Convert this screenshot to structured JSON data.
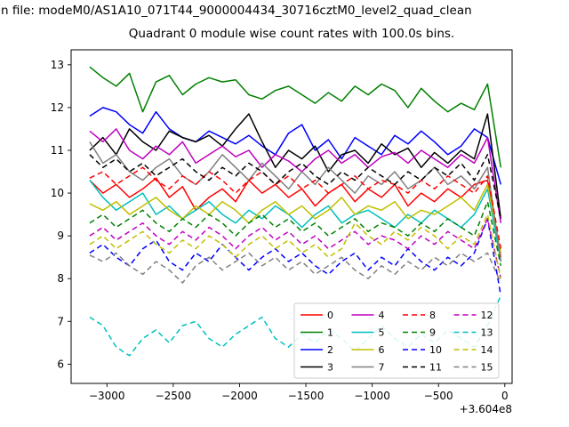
{
  "header": {
    "file_label": "n file: modeM0/AS1A10_071T44_9000004434_30716cztM0_level2_quad_clean"
  },
  "chart_data": {
    "type": "line",
    "title": "Quadrant 0 module wise count rates with 100.0s bins.",
    "xlabel": "",
    "ylabel": "",
    "x_offset_label": "+3.604e8",
    "xlim": [
      -3270,
      55
    ],
    "ylim": [
      5.55,
      13.35
    ],
    "grid": false,
    "legend": {
      "position": "lower right",
      "ncols": 4
    },
    "xticks": [
      {
        "v": -3000,
        "label": "−3000"
      },
      {
        "v": -2500,
        "label": "−2500"
      },
      {
        "v": -2000,
        "label": "−2000"
      },
      {
        "v": -1500,
        "label": "−1500"
      },
      {
        "v": -1000,
        "label": "−1000"
      },
      {
        "v": -500,
        "label": "−500"
      },
      {
        "v": 0,
        "label": "0"
      }
    ],
    "yticks": [
      {
        "v": 6,
        "label": "6"
      },
      {
        "v": 7,
        "label": "7"
      },
      {
        "v": 8,
        "label": "8"
      },
      {
        "v": 9,
        "label": "9"
      },
      {
        "v": 10,
        "label": "10"
      },
      {
        "v": 11,
        "label": "11"
      },
      {
        "v": 12,
        "label": "12"
      },
      {
        "v": 13,
        "label": "13"
      }
    ],
    "x": [
      -3130,
      -3030,
      -2930,
      -2830,
      -2730,
      -2630,
      -2530,
      -2430,
      -2330,
      -2230,
      -2130,
      -2030,
      -1930,
      -1830,
      -1730,
      -1630,
      -1530,
      -1430,
      -1330,
      -1230,
      -1130,
      -1030,
      -930,
      -830,
      -730,
      -630,
      -530,
      -430,
      -330,
      -230,
      -130,
      -30
    ],
    "series": [
      {
        "name": "0",
        "color": "#ff0000",
        "dash": false,
        "values": [
          10.3,
          10.0,
          10.2,
          9.9,
          10.1,
          10.35,
          9.9,
          10.15,
          9.6,
          9.9,
          10.1,
          9.8,
          10.3,
          10.0,
          10.2,
          9.9,
          10.1,
          9.7,
          10.0,
          10.2,
          9.8,
          10.1,
          9.9,
          10.2,
          9.7,
          10.0,
          9.8,
          10.1,
          9.9,
          10.2,
          10.3,
          8.5
        ]
      },
      {
        "name": "1",
        "color": "#008000",
        "dash": false,
        "values": [
          12.95,
          12.7,
          12.5,
          12.8,
          11.9,
          12.6,
          12.75,
          12.3,
          12.55,
          12.7,
          12.6,
          12.65,
          12.3,
          12.2,
          12.4,
          12.5,
          12.3,
          12.1,
          12.35,
          12.15,
          12.5,
          12.3,
          12.55,
          12.4,
          12.0,
          12.45,
          12.15,
          11.9,
          12.1,
          11.95,
          12.55,
          10.6
        ]
      },
      {
        "name": "2",
        "color": "#0000ff",
        "dash": false,
        "values": [
          11.8,
          12.0,
          11.9,
          11.6,
          11.4,
          11.9,
          11.5,
          11.3,
          11.2,
          11.45,
          11.3,
          11.15,
          11.35,
          11.1,
          10.9,
          11.4,
          11.6,
          11.0,
          11.25,
          10.8,
          11.3,
          11.1,
          10.9,
          11.35,
          11.15,
          11.45,
          11.2,
          10.9,
          11.1,
          11.5,
          11.3,
          10.2
        ]
      },
      {
        "name": "3",
        "color": "#000000",
        "dash": false,
        "values": [
          11.0,
          11.3,
          10.9,
          11.5,
          11.2,
          11.0,
          11.45,
          11.3,
          11.2,
          11.35,
          11.1,
          11.5,
          11.85,
          11.2,
          10.6,
          11.0,
          10.8,
          11.1,
          10.5,
          10.9,
          11.0,
          10.7,
          11.15,
          10.9,
          11.05,
          10.6,
          10.95,
          10.7,
          11.0,
          10.8,
          11.85,
          9.4
        ]
      },
      {
        "name": "4",
        "color": "#bf00bf",
        "dash": false,
        "values": [
          11.45,
          11.2,
          11.5,
          11.0,
          10.8,
          11.1,
          10.9,
          11.2,
          10.7,
          10.9,
          11.1,
          10.85,
          11.0,
          10.6,
          10.9,
          10.75,
          10.5,
          10.8,
          11.0,
          10.7,
          10.9,
          10.6,
          10.85,
          10.95,
          10.7,
          11.0,
          10.8,
          10.6,
          10.9,
          10.7,
          11.3,
          9.3
        ]
      },
      {
        "name": "5",
        "color": "#00bfbf",
        "dash": false,
        "values": [
          10.3,
          9.9,
          9.6,
          9.8,
          10.0,
          9.5,
          9.7,
          9.4,
          9.6,
          9.8,
          9.5,
          9.3,
          9.6,
          9.4,
          9.7,
          9.5,
          9.2,
          9.5,
          9.7,
          9.3,
          9.5,
          9.6,
          9.4,
          9.2,
          9.5,
          9.3,
          9.6,
          9.4,
          9.2,
          9.5,
          10.1,
          8.4
        ]
      },
      {
        "name": "6",
        "color": "#bfbf00",
        "dash": false,
        "values": [
          9.75,
          9.6,
          9.8,
          9.5,
          9.7,
          9.9,
          9.6,
          9.4,
          9.7,
          9.5,
          9.8,
          9.6,
          9.3,
          9.6,
          9.8,
          9.5,
          9.7,
          9.4,
          9.6,
          9.9,
          9.5,
          9.7,
          9.6,
          9.8,
          9.4,
          9.6,
          9.5,
          9.7,
          9.9,
          9.6,
          10.2,
          8.6
        ]
      },
      {
        "name": "7",
        "color": "#808080",
        "dash": false,
        "values": [
          11.2,
          10.7,
          10.9,
          10.5,
          10.3,
          10.6,
          10.8,
          10.4,
          10.2,
          10.5,
          10.9,
          10.6,
          10.3,
          10.7,
          10.4,
          10.1,
          10.5,
          10.2,
          10.6,
          10.3,
          10.0,
          10.4,
          10.2,
          10.5,
          10.1,
          10.3,
          10.6,
          10.2,
          10.4,
          10.1,
          10.6,
          8.4
        ]
      },
      {
        "name": "8",
        "color": "#ff0000",
        "dash": true,
        "values": [
          10.35,
          10.5,
          10.2,
          10.4,
          10.6,
          10.3,
          10.1,
          10.4,
          10.2,
          10.5,
          10.3,
          10.0,
          10.3,
          10.5,
          10.2,
          10.4,
          10.1,
          10.3,
          10.0,
          10.2,
          10.4,
          10.1,
          10.3,
          10.2,
          10.0,
          10.3,
          10.1,
          10.4,
          10.2,
          10.0,
          10.4,
          8.7
        ]
      },
      {
        "name": "9",
        "color": "#008000",
        "dash": true,
        "values": [
          9.3,
          9.5,
          9.2,
          9.4,
          9.6,
          9.3,
          9.1,
          9.4,
          9.2,
          9.5,
          9.3,
          9.0,
          9.3,
          9.5,
          9.2,
          9.4,
          9.1,
          9.3,
          9.0,
          9.2,
          9.4,
          9.1,
          9.3,
          9.2,
          9.0,
          9.3,
          9.1,
          9.4,
          9.2,
          9.0,
          9.8,
          8.3
        ]
      },
      {
        "name": "10",
        "color": "#0000ff",
        "dash": true,
        "values": [
          8.6,
          8.8,
          8.5,
          8.3,
          8.7,
          8.9,
          8.4,
          8.2,
          8.6,
          8.4,
          8.8,
          8.5,
          8.2,
          8.5,
          8.7,
          8.4,
          8.6,
          8.3,
          8.1,
          8.4,
          8.6,
          8.2,
          8.5,
          8.3,
          8.7,
          8.4,
          8.2,
          8.5,
          8.3,
          8.6,
          9.4,
          7.6
        ]
      },
      {
        "name": "11",
        "color": "#000000",
        "dash": true,
        "values": [
          10.9,
          10.6,
          10.8,
          10.5,
          10.7,
          10.4,
          10.6,
          10.8,
          10.5,
          10.3,
          10.6,
          10.4,
          10.7,
          10.5,
          10.2,
          10.5,
          10.7,
          10.4,
          10.2,
          10.5,
          10.3,
          10.6,
          10.4,
          10.2,
          10.5,
          10.3,
          10.6,
          10.4,
          10.7,
          10.3,
          10.9,
          9.4
        ]
      },
      {
        "name": "12",
        "color": "#bf00bf",
        "dash": true,
        "values": [
          9.0,
          9.2,
          8.9,
          9.1,
          9.3,
          9.0,
          8.8,
          9.1,
          8.9,
          9.2,
          9.0,
          8.7,
          9.0,
          9.2,
          8.9,
          9.1,
          8.8,
          9.0,
          8.7,
          8.9,
          9.1,
          8.8,
          9.0,
          8.9,
          8.7,
          9.0,
          8.8,
          9.1,
          8.9,
          8.7,
          9.4,
          8.0
        ]
      },
      {
        "name": "13",
        "color": "#00bfbf",
        "dash": true,
        "values": [
          7.1,
          6.9,
          6.4,
          6.2,
          6.6,
          6.8,
          6.5,
          6.9,
          7.0,
          6.6,
          6.4,
          6.7,
          6.9,
          7.1,
          6.6,
          6.4,
          6.7,
          6.5,
          6.8,
          6.6,
          6.3,
          6.6,
          6.9,
          6.6,
          6.4,
          6.7,
          6.5,
          6.8,
          6.6,
          6.4,
          6.9,
          7.6
        ]
      },
      {
        "name": "14",
        "color": "#bfbf00",
        "dash": true,
        "values": [
          8.8,
          9.0,
          8.7,
          8.9,
          9.1,
          8.8,
          8.6,
          8.9,
          8.7,
          9.0,
          8.8,
          8.5,
          8.8,
          9.0,
          8.7,
          8.9,
          8.6,
          8.8,
          8.5,
          8.7,
          9.3,
          9.0,
          8.8,
          9.1,
          8.9,
          9.2,
          9.0,
          8.7,
          9.0,
          8.8,
          9.5,
          8.0
        ]
      },
      {
        "name": "15",
        "color": "#808080",
        "dash": true,
        "values": [
          8.55,
          8.4,
          8.6,
          8.3,
          8.1,
          8.4,
          8.2,
          7.9,
          8.3,
          8.5,
          8.2,
          8.4,
          8.6,
          8.3,
          8.5,
          8.2,
          8.4,
          8.1,
          8.3,
          8.5,
          8.2,
          8.0,
          8.3,
          8.1,
          8.4,
          8.2,
          8.5,
          8.3,
          8.6,
          8.4,
          8.6,
          7.9
        ]
      }
    ]
  }
}
